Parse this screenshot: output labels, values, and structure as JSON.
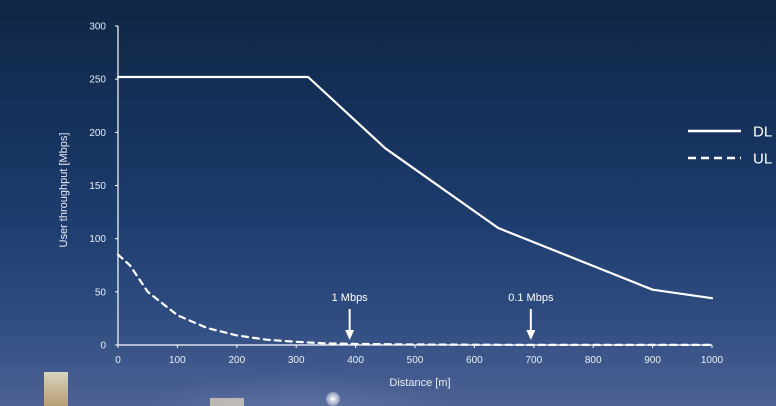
{
  "chart_data": {
    "type": "line",
    "title": "",
    "xlabel": "Distance [m]",
    "ylabel": "User throughput [Mbps]",
    "xlim": [
      0,
      1000
    ],
    "ylim": [
      0,
      300
    ],
    "xticks": [
      0,
      100,
      200,
      300,
      400,
      500,
      600,
      700,
      800,
      900,
      1000
    ],
    "yticks": [
      0,
      50,
      100,
      150,
      200,
      250,
      300
    ],
    "grid": false,
    "legend_position": "right",
    "series": [
      {
        "name": "DL",
        "style": "solid",
        "color": "#ffffff",
        "x": [
          0,
          320,
          450,
          640,
          900,
          1000
        ],
        "y": [
          252,
          252,
          185,
          110,
          52,
          44
        ]
      },
      {
        "name": "UL",
        "style": "dashed",
        "color": "#ffffff",
        "x": [
          0,
          20,
          50,
          100,
          150,
          200,
          250,
          300,
          350,
          400,
          500,
          600,
          700,
          800,
          900,
          1000
        ],
        "y": [
          85,
          75,
          50,
          28,
          16,
          9,
          5,
          3,
          1.5,
          1,
          0.5,
          0.3,
          0.1,
          0.1,
          0.1,
          0.1
        ]
      }
    ],
    "annotations": [
      {
        "label": "1 Mbps",
        "x": 390
      },
      {
        "label": "0.1 Mbps",
        "x": 695
      }
    ]
  },
  "colors": {
    "background_top": "#0f2745",
    "background_bottom": "#4d6294",
    "foreground": "#ffffff"
  }
}
